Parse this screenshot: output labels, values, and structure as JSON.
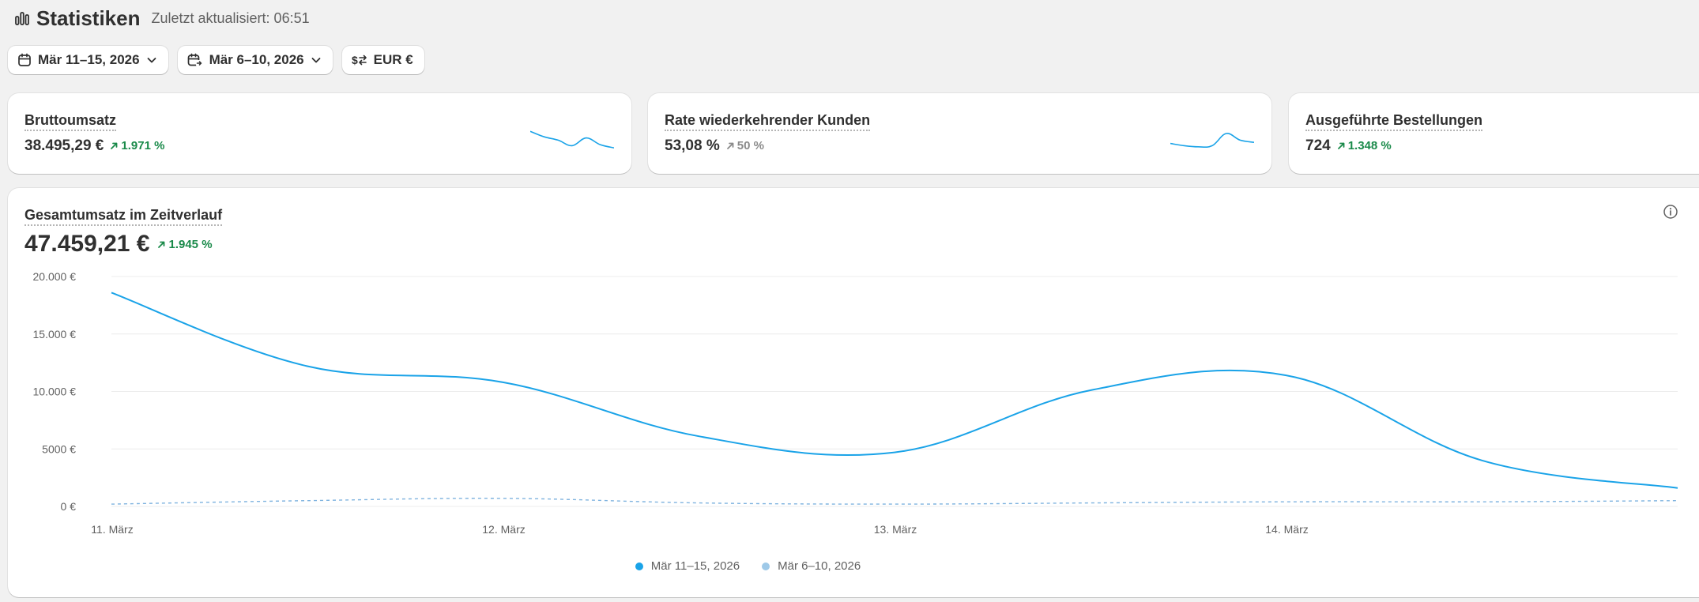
{
  "header": {
    "title": "Statistiken",
    "updated": "Zuletzt aktualisiert: 06:51"
  },
  "toolbar": {
    "date_range": "Mär 11–15, 2026",
    "compare_range": "Mär 6–10, 2026",
    "currency": "EUR €"
  },
  "cards": [
    {
      "label": "Bruttoumsatz",
      "value": "38.495,29 €",
      "delta": "1.971 %",
      "delta_color": "#1a8a4a"
    },
    {
      "label": "Rate wiederkehrender Kunden",
      "value": "53,08 %",
      "delta": "50 %",
      "delta_color": "#8a8a8a"
    },
    {
      "label": "Ausgeführte Bestellungen",
      "value": "724",
      "delta": "1.348 %",
      "delta_color": "#1a8a4a"
    }
  ],
  "chart": {
    "title": "Gesamtumsatz im Zeitverlauf",
    "total": "47.459,21 €",
    "delta": "1.945 %",
    "legend": [
      "Mär 11–15, 2026",
      "Mär 6–10, 2026"
    ]
  },
  "colors": {
    "primary_series": "#1aa3e8",
    "comparison_series": "#9ec9e8",
    "positive": "#1a8a4a",
    "neutral": "#8a8a8a"
  },
  "chart_data": {
    "type": "line",
    "title": "Gesamtumsatz im Zeitverlauf",
    "xlabel": "",
    "ylabel": "",
    "x": [
      0,
      0.5,
      1,
      1.5,
      2,
      2.5,
      3,
      3.5,
      4
    ],
    "x_ticks": [
      {
        "at": 0,
        "label": "11. März"
      },
      {
        "at": 1,
        "label": "12. März"
      },
      {
        "at": 2,
        "label": "13. März"
      },
      {
        "at": 3,
        "label": "14. März"
      }
    ],
    "y_ticks": [
      {
        "at": 0,
        "label": "0 €"
      },
      {
        "at": 5000,
        "label": "5000 €"
      },
      {
        "at": 10000,
        "label": "10.000 €"
      },
      {
        "at": 15000,
        "label": "15.000 €"
      },
      {
        "at": 20000,
        "label": "20.000 €"
      }
    ],
    "ylim": [
      0,
      20000
    ],
    "xlim": [
      0,
      4
    ],
    "grid": true,
    "legend_position": "bottom-center",
    "series": [
      {
        "name": "Mär 11–15, 2026",
        "style": "solid",
        "values": [
          18600,
          12200,
          10800,
          6100,
          4700,
          10100,
          11400,
          4000,
          1600
        ]
      },
      {
        "name": "Mär 6–10, 2026",
        "style": "dashed",
        "values": [
          200,
          500,
          700,
          300,
          200,
          300,
          400,
          400,
          500
        ]
      }
    ]
  },
  "sparklines": [
    [
      0.85,
      0.6,
      0.45,
      0.2,
      0.55,
      0.25,
      0.1
    ],
    [
      0.3,
      0.2,
      0.15,
      0.2,
      0.75,
      0.45,
      0.35
    ],
    []
  ]
}
